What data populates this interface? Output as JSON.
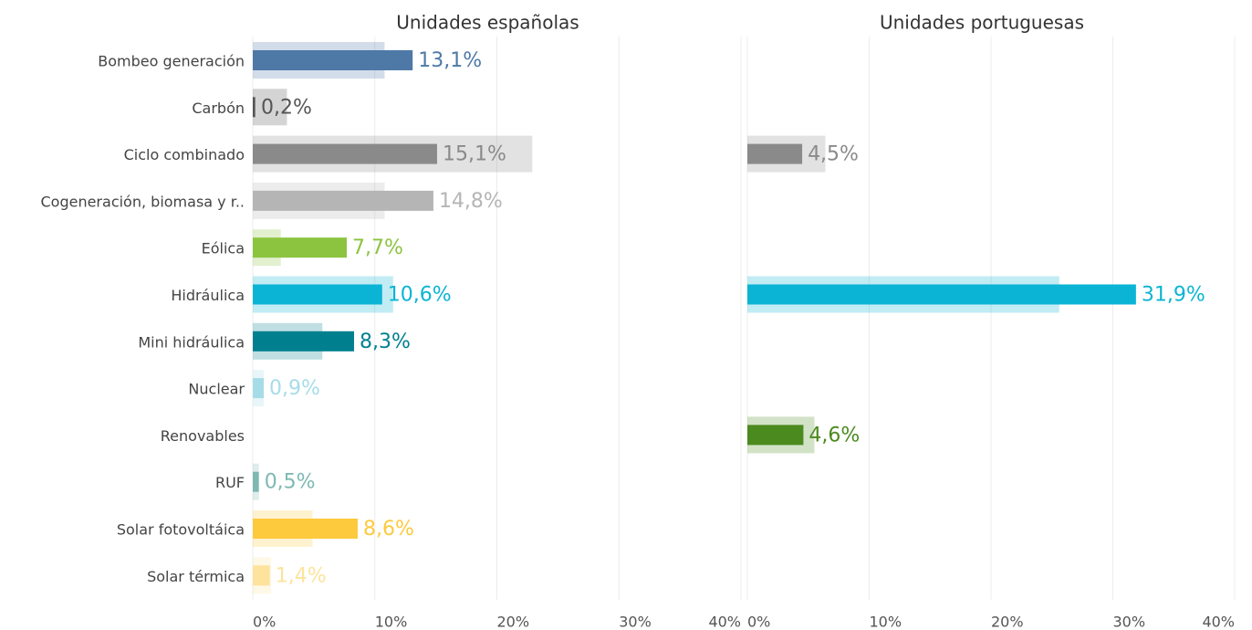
{
  "chart_data": [
    {
      "type": "bar",
      "orientation": "horizontal",
      "title": "Unidades españolas",
      "categories": [
        "Bombeo generación",
        "Carbón",
        "Ciclo combinado",
        "Cogeneración, biomasa y r..",
        "Eólica",
        "Hidráulica",
        "Mini hidráulica",
        "Nuclear",
        "Renovables",
        "RUF",
        "Solar fotovoltáica",
        "Solar térmica"
      ],
      "values": [
        13.1,
        0.2,
        15.1,
        14.8,
        7.7,
        10.6,
        8.3,
        0.9,
        null,
        0.5,
        8.6,
        1.4
      ],
      "value_labels": [
        "13,1%",
        "0,2%",
        "15,1%",
        "14,8%",
        "7,7%",
        "10,6%",
        "8,3%",
        "0,9%",
        null,
        "0,5%",
        "8,6%",
        "1,4%"
      ],
      "background_values": [
        10.8,
        2.8,
        22.9,
        10.8,
        2.3,
        11.5,
        5.7,
        0.9,
        null,
        0.5,
        4.9,
        1.5
      ],
      "colors": [
        "#4e79a7",
        "#555555",
        "#8a8a8a",
        "#b5b5b5",
        "#8cc43f",
        "#0bb4d4",
        "#00808f",
        "#a6dce8",
        "#4b8a1e",
        "#7fb8b3",
        "#fdca3e",
        "#fde39b"
      ],
      "xlim": [
        0,
        40
      ],
      "xticks": [
        {
          "value": 0,
          "label": "0%"
        },
        {
          "value": 10,
          "label": "10%"
        },
        {
          "value": 20,
          "label": "20%"
        },
        {
          "value": 30,
          "label": "30%"
        },
        {
          "value": 40,
          "label": "40%"
        }
      ],
      "grid": true
    },
    {
      "type": "bar",
      "orientation": "horizontal",
      "title": "Unidades portuguesas",
      "values": [
        null,
        null,
        4.5,
        null,
        null,
        31.9,
        null,
        null,
        4.6,
        null,
        null,
        null
      ],
      "value_labels": [
        null,
        null,
        "4,5%",
        null,
        null,
        "31,9%",
        null,
        null,
        "4,6%",
        null,
        null,
        null
      ],
      "background_values": [
        null,
        null,
        6.4,
        null,
        null,
        25.6,
        null,
        null,
        5.5,
        null,
        null,
        null
      ],
      "xlim": [
        0,
        40
      ],
      "xticks": [
        {
          "value": 0,
          "label": "0%"
        },
        {
          "value": 10,
          "label": "10%"
        },
        {
          "value": 20,
          "label": "20%"
        },
        {
          "value": 30,
          "label": "30%"
        },
        {
          "value": 40,
          "label": "40%"
        }
      ],
      "grid": true
    }
  ]
}
